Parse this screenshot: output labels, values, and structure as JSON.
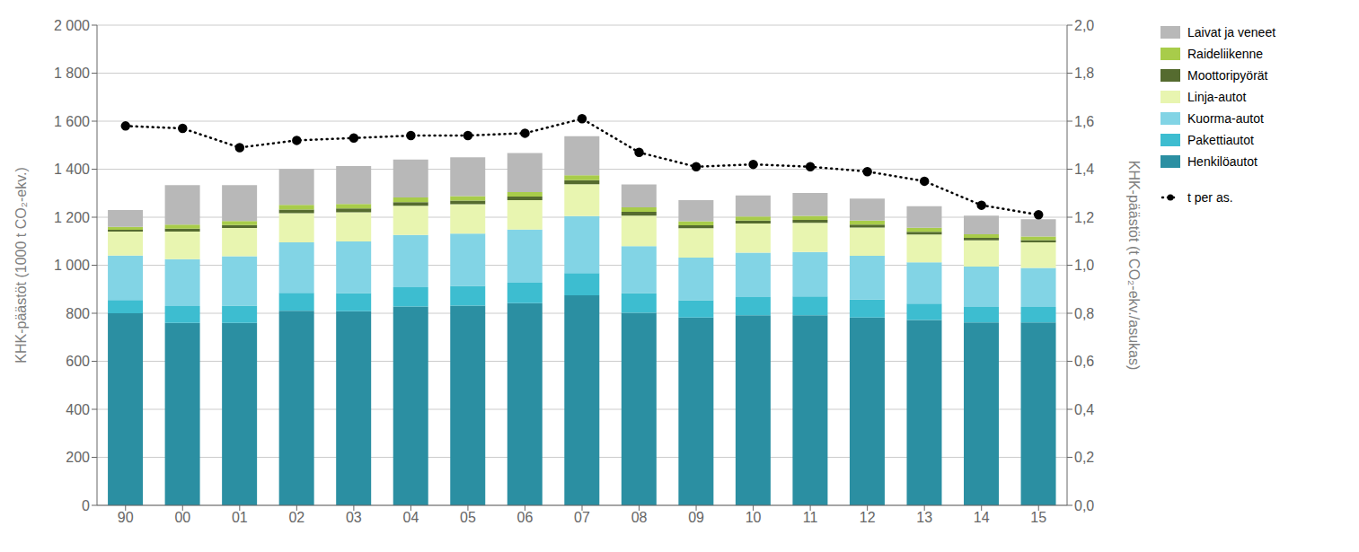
{
  "chart_data": {
    "type": "bar",
    "stacked": true,
    "grid": true,
    "legend": "right",
    "ylabel": "KHK-päästöt (1000 t CO₂-ekv.)",
    "y2label": "KHK-päästöt (t CO₂-ekv./asukas)",
    "categories": [
      "90",
      "00",
      "01",
      "02",
      "03",
      "04",
      "05",
      "06",
      "07",
      "08",
      "09",
      "10",
      "11",
      "12",
      "13",
      "14",
      "15"
    ],
    "series": [
      {
        "name": "Henkilöautot",
        "color": "#2b8fa2",
        "values": [
          800,
          760,
          760,
          810,
          808,
          828,
          832,
          842,
          875,
          802,
          782,
          792,
          792,
          782,
          772,
          762,
          762
        ]
      },
      {
        "name": "Pakettiautot",
        "color": "#3dbdd0",
        "values": [
          55,
          70,
          72,
          75,
          76,
          80,
          82,
          85,
          92,
          82,
          72,
          75,
          78,
          75,
          68,
          64,
          64
        ]
      },
      {
        "name": "Kuorma-autot",
        "color": "#82d4e5",
        "values": [
          185,
          195,
          205,
          210,
          215,
          218,
          218,
          222,
          238,
          195,
          178,
          185,
          185,
          182,
          172,
          168,
          163
        ]
      },
      {
        "name": "Linja-autot",
        "color": "#e8f5b0",
        "values": [
          100,
          115,
          118,
          122,
          122,
          122,
          122,
          122,
          132,
          128,
          122,
          122,
          122,
          118,
          116,
          110,
          106
        ]
      },
      {
        "name": "Moottoripyörät",
        "color": "#556b2f",
        "values": [
          8,
          12,
          12,
          15,
          15,
          15,
          15,
          15,
          17,
          15,
          12,
          12,
          12,
          12,
          11,
          10,
          10
        ]
      },
      {
        "name": "Raideliikenne",
        "color": "#a8cc4a",
        "values": [
          12,
          17,
          17,
          19,
          19,
          19,
          19,
          19,
          21,
          19,
          17,
          17,
          17,
          17,
          17,
          15,
          15
        ]
      },
      {
        "name": "Laivat ja veneet",
        "color": "#b8b8b8",
        "values": [
          70,
          165,
          150,
          150,
          158,
          158,
          162,
          162,
          162,
          95,
          88,
          88,
          95,
          92,
          90,
          78,
          72
        ]
      },
      {
        "name": "t per as.",
        "type": "line",
        "axis": "y2",
        "color": "#000000",
        "marker": "o",
        "line_style": "dotted",
        "values": [
          1.58,
          1.57,
          1.49,
          1.52,
          1.53,
          1.54,
          1.54,
          1.55,
          1.61,
          1.47,
          1.41,
          1.42,
          1.41,
          1.39,
          1.35,
          1.25,
          1.21
        ]
      }
    ],
    "ylim": [
      0,
      2000
    ],
    "yticks": [
      0,
      200,
      400,
      600,
      800,
      {
        "value": 1000,
        "label": "1 000"
      },
      {
        "value": 1200,
        "label": "1 200"
      },
      {
        "value": 1400,
        "label": "1 400"
      },
      {
        "value": 1600,
        "label": "1 600"
      },
      {
        "value": 1800,
        "label": "1 800"
      },
      {
        "value": 2000,
        "label": "2 000"
      }
    ],
    "y2lim": [
      0,
      2.0
    ],
    "y2ticks": [
      {
        "value": 0.0,
        "label": "0,0"
      },
      {
        "value": 0.2,
        "label": "0,2"
      },
      {
        "value": 0.4,
        "label": "0,4"
      },
      {
        "value": 0.6,
        "label": "0,6"
      },
      {
        "value": 0.8,
        "label": "0,8"
      },
      {
        "value": 1.0,
        "label": "1,0"
      },
      {
        "value": 1.2,
        "label": "1,2"
      },
      {
        "value": 1.4,
        "label": "1,4"
      },
      {
        "value": 1.6,
        "label": "1,6"
      },
      {
        "value": 1.8,
        "label": "1,8"
      },
      {
        "value": 2.0,
        "label": "2,0"
      }
    ]
  }
}
